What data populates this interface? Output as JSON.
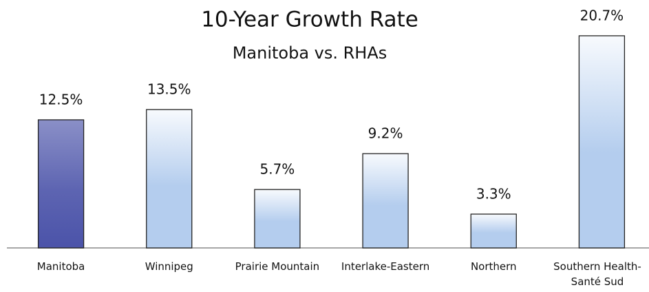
{
  "chart_data": {
    "type": "bar",
    "title": "10-Year Growth Rate",
    "subtitle": "Manitoba vs. RHAs",
    "categories": [
      "Manitoba",
      "Winnipeg",
      "Prairie Mountain",
      "Interlake-Eastern",
      "Northern",
      "Southern Health-Santé Sud"
    ],
    "values": [
      12.5,
      13.5,
      5.7,
      9.2,
      3.3,
      20.7
    ],
    "value_labels": [
      "12.5%",
      "13.5%",
      "5.7%",
      "9.2%",
      "3.3%",
      "20.7%"
    ],
    "colors": [
      "#4b53a9",
      "#b4cdee",
      "#b4cdee",
      "#b4cdee",
      "#b4cdee",
      "#b4cdee"
    ],
    "ylim": [
      0,
      21
    ]
  }
}
